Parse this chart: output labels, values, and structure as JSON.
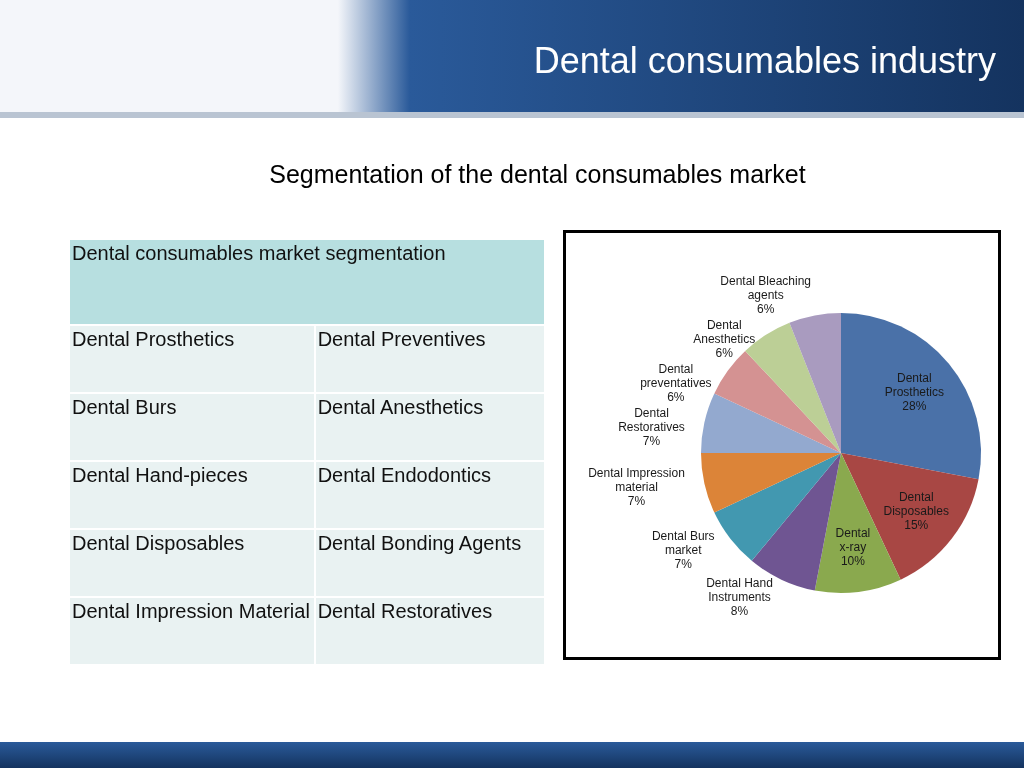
{
  "chart_data": [
    {
      "type": "other",
      "title": "Dental consumables industry",
      "subtitle": "Segmentation of the dental consumables market",
      "annotations": [
        "Dental consumables market segmentation",
        "Dental Prosthetics",
        "Dental Preventives",
        "Dental Burs",
        "Dental Anesthetics",
        "Dental Hand-pieces",
        "Dental Endodontics",
        "Dental Disposables",
        "Dental Bonding Agents",
        "Dental Impression Material",
        "Dental Restoratives"
      ]
    },
    {
      "type": "pie",
      "categories": [
        "Dental Prosthetics",
        "Dental Disposables",
        "Dental x-ray",
        "Dental Hand Instruments",
        "Dental Burs market",
        "Dental Impression material",
        "Dental Restoratives",
        "Dental preventatives",
        "Dental Anesthetics",
        "Dental Bleaching agents"
      ],
      "values": [
        28,
        15,
        10,
        8,
        7,
        7,
        7,
        6,
        6,
        6
      ],
      "colors": [
        "#4a71a8",
        "#a84744",
        "#8aa94e",
        "#6f5592",
        "#4298b0",
        "#dc8438",
        "#93a9cf",
        "#d49292",
        "#bccf96",
        "#a99bbf"
      ],
      "value_labels": [
        "28%",
        "15%",
        "10%",
        "8%",
        "7%",
        "7%",
        "7%",
        "6%",
        "6%",
        "6%"
      ]
    }
  ]
}
